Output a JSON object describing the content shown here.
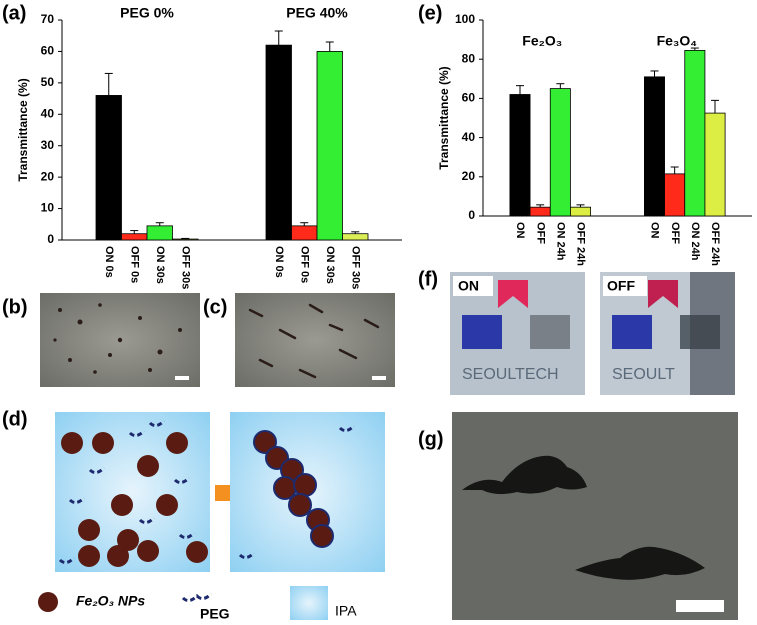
{
  "chart_data": [
    {
      "type": "bar",
      "y_label": "Transmittance (%)",
      "categories": [
        "PEG 0%",
        "PEG 40%"
      ],
      "series": [
        {
          "name": "ON 0s",
          "color": "#000000",
          "values": [
            46,
            62
          ],
          "errors": [
            7,
            4.5
          ]
        },
        {
          "name": "OFF 0s",
          "color": "#ff2a1a",
          "values": [
            2,
            4.5
          ],
          "errors": [
            1,
            1
          ]
        },
        {
          "name": "ON 30s",
          "color": "#33ee33",
          "values": [
            4.5,
            60
          ],
          "errors": [
            1,
            3
          ]
        },
        {
          "name": "OFF 30s",
          "color": "#dcee55",
          "values": [
            0.3,
            2
          ],
          "errors": [
            0.2,
            0.6
          ]
        }
      ],
      "ylim": [
        0,
        70
      ],
      "yticks": [
        0,
        10,
        20,
        30,
        40,
        50,
        60,
        70
      ]
    },
    {
      "type": "bar",
      "y_label": "Transmittance (%)",
      "categories": [
        "Fe₂O₃",
        "Fe₃O₄"
      ],
      "series": [
        {
          "name": "ON",
          "color": "#000000",
          "values": [
            62,
            71
          ],
          "errors": [
            4.5,
            3
          ]
        },
        {
          "name": "OFF",
          "color": "#ff2a1a",
          "values": [
            4.5,
            21.5
          ],
          "errors": [
            1.2,
            3.5
          ]
        },
        {
          "name": "ON 24h",
          "color": "#33ee33",
          "values": [
            65,
            84.5
          ],
          "errors": [
            2.5,
            1.2
          ]
        },
        {
          "name": "OFF 24h",
          "color": "#dcee44",
          "values": [
            4.5,
            52.5
          ],
          "errors": [
            1.2,
            6.5
          ]
        }
      ],
      "ylim": [
        0,
        100
      ],
      "yticks": [
        0,
        20,
        40,
        60,
        80,
        100
      ]
    }
  ],
  "panels": {
    "a": "(a)",
    "b": "(b)",
    "c": "(c)",
    "d": "(d)",
    "e": "(e)",
    "f": "(f)",
    "g": "(g)"
  },
  "legend_d": {
    "nps": "Fe₂O₃ NPs",
    "peg": "PEG",
    "ipa": "IPA"
  },
  "photo_f": {
    "on": "ON",
    "off": "OFF"
  }
}
